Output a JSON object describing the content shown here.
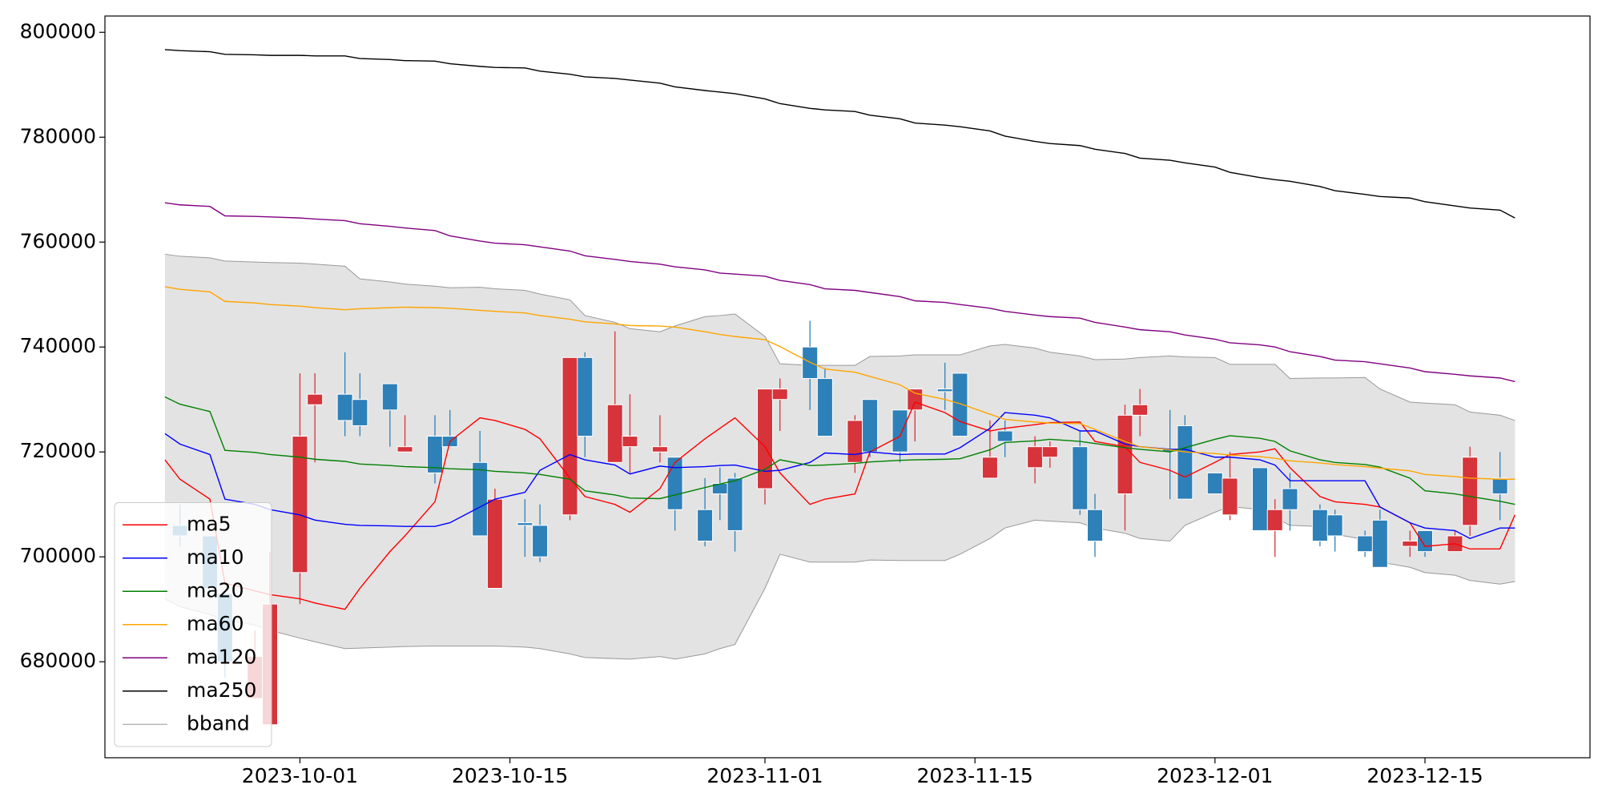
{
  "chart_data": {
    "type": "candlestick",
    "x": [
      "2023-09-22",
      "2023-09-23",
      "2023-09-25",
      "2023-09-26",
      "2023-09-28",
      "2023-09-29",
      "2023-10-01",
      "2023-10-02",
      "2023-10-04",
      "2023-10-05",
      "2023-10-07",
      "2023-10-08",
      "2023-10-10",
      "2023-10-11",
      "2023-10-13",
      "2023-10-14",
      "2023-10-16",
      "2023-10-17",
      "2023-10-19",
      "2023-10-20",
      "2023-10-22",
      "2023-10-23",
      "2023-10-25",
      "2023-10-26",
      "2023-10-28",
      "2023-10-29",
      "2023-10-30",
      "2023-11-01",
      "2023-11-02",
      "2023-11-04",
      "2023-11-05",
      "2023-11-07",
      "2023-11-08",
      "2023-11-10",
      "2023-11-11",
      "2023-11-13",
      "2023-11-14",
      "2023-11-16",
      "2023-11-17",
      "2023-11-19",
      "2023-11-20",
      "2023-11-22",
      "2023-11-23",
      "2023-11-25",
      "2023-11-26",
      "2023-11-28",
      "2023-11-29",
      "2023-12-01",
      "2023-12-02",
      "2023-12-04",
      "2023-12-05",
      "2023-12-06",
      "2023-12-08",
      "2023-12-09",
      "2023-12-11",
      "2023-12-12",
      "2023-12-14",
      "2023-12-15",
      "2023-12-17",
      "2023-12-18",
      "2023-12-20",
      "2023-12-21"
    ],
    "candles": {
      "up_color": "#d6333a",
      "down_color": "#2e80b8",
      "open": [
        null,
        706000,
        704000,
        693000,
        673000,
        668000,
        697000,
        729000,
        731000,
        730000,
        733000,
        720000,
        723000,
        723000,
        718000,
        694000,
        706500,
        706000,
        708000,
        738000,
        718000,
        721000,
        720000,
        719000,
        709000,
        714000,
        715000,
        713000,
        730000,
        740000,
        734000,
        718000,
        730000,
        728000,
        728000,
        732000,
        735000,
        715000,
        724000,
        717000,
        719000,
        721000,
        709000,
        712000,
        727000,
        720500,
        725000,
        716000,
        708000,
        717000,
        705000,
        713000,
        709000,
        708000,
        704000,
        707000,
        702000,
        705000,
        701000,
        706000,
        715000,
        null
      ],
      "high": [
        null,
        710000,
        704000,
        693000,
        686000,
        701000,
        735000,
        735000,
        739000,
        735000,
        733000,
        727000,
        727000,
        728000,
        724000,
        713000,
        711000,
        710000,
        738000,
        739000,
        743000,
        731000,
        727000,
        719000,
        715000,
        717000,
        716000,
        732000,
        734000,
        745000,
        736000,
        727000,
        730000,
        728000,
        732000,
        737000,
        735000,
        726000,
        726000,
        723000,
        722000,
        724000,
        712000,
        729000,
        732000,
        728000,
        727000,
        716000,
        720000,
        717000,
        711000,
        716000,
        710000,
        709000,
        705000,
        709000,
        705000,
        705000,
        705000,
        721000,
        720000,
        null
      ],
      "low": [
        null,
        702000,
        693000,
        677000,
        673000,
        668000,
        691000,
        718000,
        723000,
        723000,
        721000,
        720000,
        714000,
        721000,
        704000,
        694000,
        700000,
        699000,
        707000,
        719000,
        718000,
        716000,
        718000,
        705000,
        702000,
        707000,
        701000,
        710000,
        724000,
        728000,
        723000,
        716000,
        719000,
        718000,
        722000,
        728000,
        723000,
        715000,
        719000,
        714000,
        717000,
        708000,
        700000,
        705000,
        723000,
        711000,
        711000,
        712000,
        707000,
        705000,
        700000,
        705000,
        702000,
        701000,
        700000,
        698000,
        700000,
        700000,
        701000,
        704000,
        707000,
        null
      ],
      "close": [
        null,
        704000,
        694000,
        680000,
        681000,
        691000,
        723000,
        731000,
        726000,
        725000,
        728000,
        721000,
        716000,
        721000,
        704000,
        711000,
        706000,
        700000,
        738000,
        723000,
        729000,
        723000,
        721000,
        709000,
        703000,
        712000,
        705000,
        732000,
        732000,
        734000,
        723000,
        726000,
        720000,
        720000,
        732000,
        731500,
        723000,
        719000,
        722000,
        721000,
        721000,
        709000,
        703000,
        727000,
        729000,
        720000,
        711000,
        712000,
        715000,
        705000,
        709000,
        709000,
        703000,
        704000,
        701000,
        698000,
        703000,
        701000,
        704000,
        719000,
        712000,
        null
      ]
    },
    "series": [
      {
        "name": "ma5",
        "color": "#ff0000",
        "values": [
          718500,
          714800,
          711000,
          695000,
          693500,
          692800,
          692000,
          691200,
          690000,
          694000,
          701000,
          704000,
          710500,
          722000,
          726500,
          726000,
          724300,
          722500,
          715000,
          711500,
          710000,
          708500,
          713000,
          718000,
          722500,
          724500,
          726500,
          721000,
          716000,
          710000,
          711000,
          712000,
          720000,
          723000,
          729500,
          727500,
          725800,
          724000,
          724500,
          725200,
          725600,
          725700,
          722000,
          721000,
          718000,
          716500,
          715200,
          718000,
          719500,
          720000,
          720600,
          717000,
          711500,
          710500,
          710000,
          709500,
          706500,
          702000,
          702500,
          701500,
          701500,
          708000
        ]
      },
      {
        "name": "ma10",
        "color": "#0000ff",
        "values": [
          723500,
          721500,
          719500,
          711000,
          710000,
          709000,
          708000,
          707000,
          706200,
          706000,
          705900,
          705800,
          705800,
          706500,
          709500,
          711000,
          712300,
          716500,
          719500,
          718500,
          717500,
          715800,
          717300,
          717000,
          717200,
          717400,
          717500,
          716300,
          716500,
          718000,
          719800,
          719500,
          720000,
          719500,
          719600,
          719600,
          720800,
          724500,
          727500,
          727000,
          726500,
          724000,
          724000,
          721500,
          721000,
          720500,
          720500,
          719000,
          719000,
          718500,
          717500,
          714500,
          714500,
          714500,
          714500,
          709500,
          706500,
          705500,
          705000,
          703500,
          705500,
          705500
        ]
      },
      {
        "name": "ma20",
        "color": "#008000",
        "values": [
          730500,
          729100,
          727700,
          720300,
          719900,
          719500,
          719000,
          718600,
          718200,
          717700,
          717400,
          717200,
          717000,
          716800,
          716600,
          716300,
          716000,
          715700,
          714800,
          712600,
          711800,
          711200,
          711100,
          711800,
          713200,
          713900,
          714500,
          716700,
          718500,
          717400,
          717500,
          717800,
          718100,
          718400,
          718500,
          718600,
          718700,
          720400,
          721800,
          722100,
          722400,
          722000,
          721600,
          720800,
          720500,
          720000,
          720800,
          722400,
          723100,
          722600,
          722000,
          720200,
          718500,
          718000,
          717600,
          717100,
          715000,
          712600,
          712000,
          711500,
          710600,
          710000
        ]
      },
      {
        "name": "ma60",
        "color": "#ffa500",
        "values": [
          751500,
          751000,
          750500,
          748700,
          748400,
          748100,
          747800,
          747500,
          747100,
          747300,
          747500,
          747600,
          747500,
          747400,
          747000,
          746800,
          746500,
          746000,
          745300,
          744800,
          744400,
          744100,
          744000,
          743800,
          742900,
          742400,
          742000,
          741400,
          740100,
          737100,
          735800,
          735200,
          734400,
          732800,
          731200,
          730000,
          729200,
          727200,
          726200,
          725700,
          725500,
          725400,
          724300,
          722000,
          721000,
          720400,
          720000,
          719700,
          719400,
          719100,
          718800,
          718300,
          717900,
          717600,
          717200,
          716900,
          716400,
          715700,
          715300,
          715000,
          714800,
          714800
        ]
      },
      {
        "name": "ma120",
        "color": "#800080",
        "values": [
          767500,
          767100,
          766800,
          765000,
          764900,
          764800,
          764600,
          764400,
          764100,
          763500,
          763000,
          762700,
          762200,
          761200,
          760200,
          759800,
          759500,
          759100,
          758300,
          757400,
          756700,
          756300,
          755800,
          755300,
          754700,
          754100,
          753900,
          753500,
          752700,
          751900,
          751100,
          750800,
          750400,
          749600,
          748800,
          748500,
          748100,
          747400,
          746800,
          746100,
          745800,
          745500,
          744700,
          743800,
          743300,
          742900,
          742300,
          741500,
          740800,
          740400,
          740000,
          739100,
          738200,
          737500,
          737200,
          736800,
          736000,
          735300,
          734800,
          734500,
          734100,
          733400
        ]
      },
      {
        "name": "ma250",
        "color": "#000000",
        "values": [
          796700,
          796500,
          796300,
          795800,
          795700,
          795600,
          795600,
          795500,
          795500,
          795000,
          794800,
          794600,
          794500,
          794000,
          793500,
          793300,
          793200,
          792600,
          792000,
          791500,
          791200,
          790900,
          790300,
          789600,
          788900,
          788600,
          788300,
          787300,
          786400,
          785500,
          785200,
          784900,
          784200,
          783500,
          782700,
          782300,
          782000,
          781200,
          780200,
          779200,
          778800,
          778400,
          777700,
          776900,
          776000,
          775600,
          775100,
          774300,
          773300,
          772300,
          771900,
          771600,
          770600,
          769800,
          769100,
          768700,
          768400,
          767700,
          766900,
          766500,
          766100,
          764600
        ]
      }
    ],
    "bband": {
      "name": "bband",
      "color": "#999999",
      "fill": "#e3e3e3",
      "upper": [
        757700,
        757300,
        757000,
        756400,
        756200,
        756100,
        756000,
        755800,
        755400,
        753000,
        752400,
        752000,
        751600,
        751300,
        751400,
        751100,
        750800,
        750100,
        749000,
        746000,
        744700,
        743500,
        742900,
        744000,
        745800,
        746000,
        746300,
        742000,
        736800,
        736500,
        736500,
        736500,
        738200,
        738300,
        738500,
        738500,
        738500,
        740200,
        740500,
        739800,
        739000,
        738300,
        737600,
        737700,
        738000,
        738300,
        738100,
        738000,
        736700,
        736700,
        736700,
        734000,
        734100,
        734100,
        734200,
        732000,
        729500,
        729300,
        729000,
        727600,
        727000,
        726000
      ],
      "lower": [
        692000,
        690500,
        689000,
        688000,
        687000,
        686000,
        684500,
        683800,
        682500,
        682600,
        682800,
        682900,
        683000,
        683000,
        683000,
        683000,
        682800,
        682500,
        681500,
        680800,
        680600,
        680500,
        681000,
        680500,
        681500,
        682500,
        683300,
        694000,
        700500,
        699000,
        699000,
        699000,
        699400,
        699300,
        699300,
        699300,
        700500,
        703500,
        705500,
        707000,
        706800,
        706500,
        705500,
        704500,
        703500,
        703000,
        706000,
        708500,
        709600,
        709000,
        707500,
        706000,
        705800,
        704300,
        703300,
        699000,
        698000,
        697000,
        696500,
        695500,
        694800,
        695300
      ]
    },
    "xlim": [
      "2023-09-18",
      "2023-12-26"
    ],
    "xticks": [
      "2023-10-01",
      "2023-10-15",
      "2023-11-01",
      "2023-11-15",
      "2023-12-01",
      "2023-12-15"
    ],
    "ylim": [
      661700,
      803100
    ],
    "yticks": [
      680000,
      700000,
      720000,
      740000,
      760000,
      780000,
      800000
    ],
    "legend": "lower left"
  }
}
